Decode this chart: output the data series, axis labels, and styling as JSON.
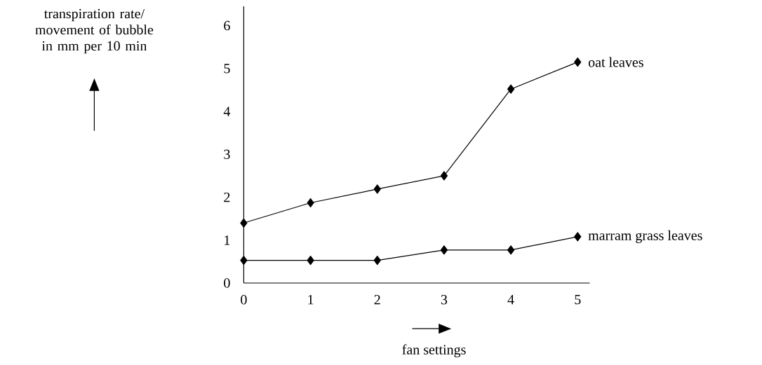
{
  "chart_data": {
    "type": "line",
    "xlabel": "fan settings",
    "annotations": [
      "transpiration rate/ movement of bubble in mm per 10 min"
    ],
    "x": [
      0,
      1,
      2,
      3,
      4,
      5
    ],
    "xlim": [
      0,
      5.18
    ],
    "ylim": [
      0,
      6.45
    ],
    "xticks": [
      0,
      1,
      2,
      3,
      4,
      5
    ],
    "yticks": [
      0,
      1,
      2,
      3,
      4,
      5,
      6
    ],
    "marker": "diamond",
    "line_style": "solid",
    "series": [
      {
        "name": "oat leaves",
        "color": "#000000",
        "values": [
          1.4,
          1.87,
          2.19,
          2.5,
          4.52,
          5.15
        ]
      },
      {
        "name": "marram grass leaves",
        "color": "#000000",
        "values": [
          0.53,
          0.53,
          0.53,
          0.77,
          0.77,
          1.08
        ]
      }
    ]
  }
}
